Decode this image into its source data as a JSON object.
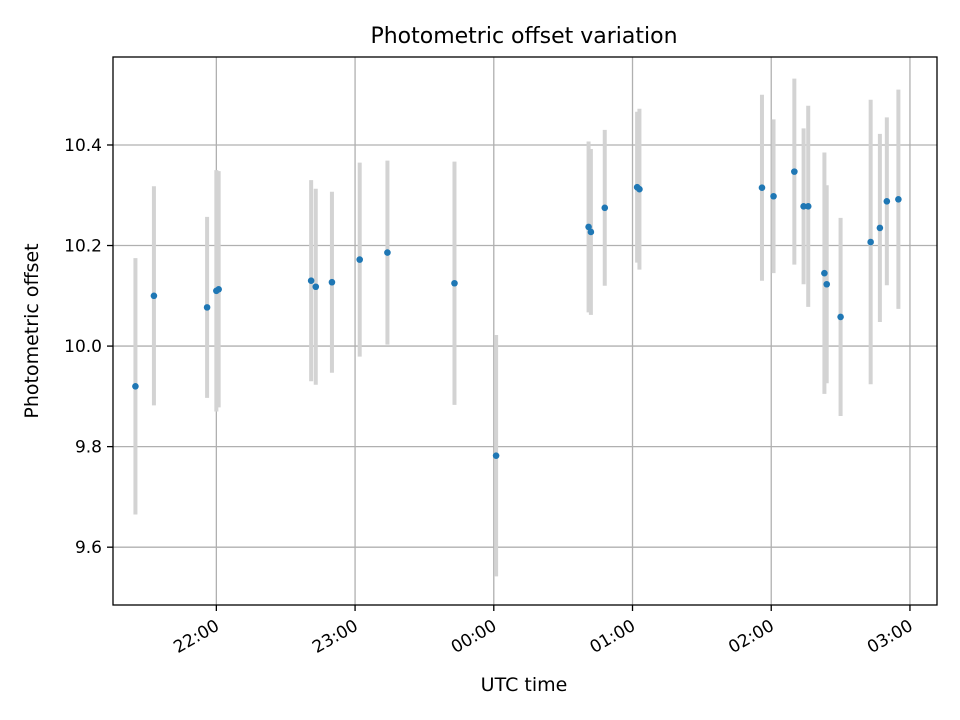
{
  "chart_data": {
    "type": "scatter",
    "title": "Photometric offset variation",
    "xlabel": "UTC time",
    "ylabel": "Photometric offset",
    "x_ticks": [
      {
        "minutes": 0,
        "label": "22:00"
      },
      {
        "minutes": 60,
        "label": "23:00"
      },
      {
        "minutes": 120,
        "label": "00:00"
      },
      {
        "minutes": 180,
        "label": "01:00"
      },
      {
        "minutes": 240,
        "label": "02:00"
      },
      {
        "minutes": 300,
        "label": "03:00"
      }
    ],
    "y_ticks": [
      {
        "value": 9.6,
        "label": "9.6"
      },
      {
        "value": 9.8,
        "label": "9.8"
      },
      {
        "value": 10.0,
        "label": "10.0"
      },
      {
        "value": 10.2,
        "label": "10.2"
      },
      {
        "value": 10.4,
        "label": "10.4"
      }
    ],
    "xlim_minutes": [
      -44.7,
      311.7
    ],
    "ylim": [
      9.485,
      10.575
    ],
    "grid": true,
    "marker_color": "#1f77b4",
    "errorbar_color": "#d3d3d3",
    "series": [
      {
        "points": [
          {
            "time": "21:25",
            "y": 9.92,
            "yerr": 0.255
          },
          {
            "time": "21:33",
            "y": 10.1,
            "yerr": 0.218
          },
          {
            "time": "21:56",
            "y": 10.077,
            "yerr": 0.18
          },
          {
            "time": "22:00",
            "y": 10.11,
            "yerr": 0.24
          },
          {
            "time": "22:01",
            "y": 10.113,
            "yerr": 0.235
          },
          {
            "time": "22:41",
            "y": 10.13,
            "yerr": 0.2
          },
          {
            "time": "22:43",
            "y": 10.118,
            "yerr": 0.195
          },
          {
            "time": "22:50",
            "y": 10.127,
            "yerr": 0.18
          },
          {
            "time": "23:02",
            "y": 10.172,
            "yerr": 0.193
          },
          {
            "time": "23:14",
            "y": 10.186,
            "yerr": 0.183
          },
          {
            "time": "23:43",
            "y": 10.125,
            "yerr": 0.242
          },
          {
            "time": "00:01",
            "y": 9.782,
            "yerr": 0.24
          },
          {
            "time": "00:41",
            "y": 10.237,
            "yerr": 0.17
          },
          {
            "time": "00:42",
            "y": 10.227,
            "yerr": 0.165
          },
          {
            "time": "00:48",
            "y": 10.275,
            "yerr": 0.155
          },
          {
            "time": "01:02",
            "y": 10.316,
            "yerr": 0.15
          },
          {
            "time": "01:03",
            "y": 10.312,
            "yerr": 0.16
          },
          {
            "time": "01:56",
            "y": 10.315,
            "yerr": 0.185
          },
          {
            "time": "02:01",
            "y": 10.298,
            "yerr": 0.153
          },
          {
            "time": "02:10",
            "y": 10.347,
            "yerr": 0.185
          },
          {
            "time": "02:14",
            "y": 10.278,
            "yerr": 0.155
          },
          {
            "time": "02:16",
            "y": 10.278,
            "yerr": 0.2
          },
          {
            "time": "02:23",
            "y": 10.145,
            "yerr": 0.24
          },
          {
            "time": "02:24",
            "y": 10.123,
            "yerr": 0.197
          },
          {
            "time": "02:30",
            "y": 10.058,
            "yerr": 0.197
          },
          {
            "time": "02:43",
            "y": 10.207,
            "yerr": 0.283
          },
          {
            "time": "02:47",
            "y": 10.235,
            "yerr": 0.187
          },
          {
            "time": "02:50",
            "y": 10.288,
            "yerr": 0.167
          },
          {
            "time": "02:55",
            "y": 10.292,
            "yerr": 0.218
          }
        ]
      }
    ]
  }
}
